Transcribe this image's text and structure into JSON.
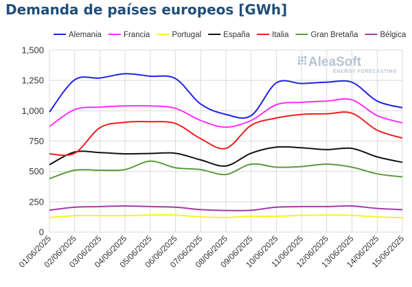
{
  "title": "Demanda de países europeos [GWh]",
  "logo": {
    "name": "AleaSoft",
    "tagline": "ENERGY FORECASTING"
  },
  "chart_data": {
    "type": "line",
    "ylim": [
      0,
      1500
    ],
    "yticks": [
      0,
      250,
      500,
      750,
      1000,
      1250,
      1500
    ],
    "grid": true,
    "legend": "top",
    "x": [
      "01/06/2025",
      "02/06/2025",
      "03/06/2025",
      "04/06/2025",
      "05/06/2025",
      "06/06/2025",
      "07/06/2025",
      "08/06/2025",
      "09/06/2025",
      "10/06/2025",
      "11/06/2025",
      "12/06/2025",
      "13/06/2025",
      "14/06/2025",
      "15/06/2025"
    ],
    "series": [
      {
        "name": "Alemania",
        "color": "#1f1fe8",
        "values": [
          990,
          1255,
          1270,
          1305,
          1285,
          1265,
          1055,
          970,
          960,
          1230,
          1225,
          1235,
          1235,
          1080,
          1025
        ]
      },
      {
        "name": "Francia",
        "color": "#ff2bff",
        "values": [
          870,
          1010,
          1030,
          1040,
          1040,
          1020,
          920,
          865,
          920,
          1050,
          1070,
          1080,
          1090,
          960,
          900
        ]
      },
      {
        "name": "Portugal",
        "color": "#f5f51a",
        "values": [
          120,
          135,
          135,
          135,
          140,
          140,
          125,
          120,
          130,
          130,
          138,
          140,
          138,
          125,
          118
        ]
      },
      {
        "name": "España",
        "color": "#111111",
        "values": [
          555,
          660,
          655,
          645,
          648,
          650,
          595,
          545,
          650,
          700,
          695,
          680,
          690,
          620,
          575
        ]
      },
      {
        "name": "Italia",
        "color": "#ee1c1c",
        "values": [
          645,
          650,
          860,
          905,
          910,
          895,
          770,
          690,
          880,
          940,
          970,
          975,
          980,
          840,
          775
        ]
      },
      {
        "name": "Gran Bretaña",
        "color": "#5a9a3a",
        "values": [
          440,
          510,
          510,
          515,
          585,
          530,
          515,
          475,
          560,
          535,
          540,
          560,
          535,
          480,
          455
        ]
      },
      {
        "name": "Bélgica",
        "color": "#a03aa6",
        "values": [
          180,
          205,
          210,
          215,
          210,
          205,
          185,
          178,
          180,
          205,
          210,
          210,
          215,
          195,
          185
        ]
      }
    ]
  }
}
